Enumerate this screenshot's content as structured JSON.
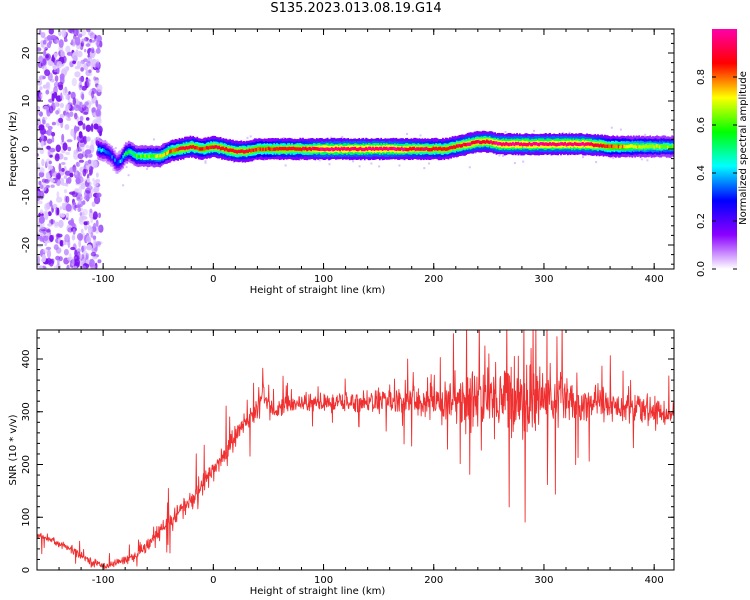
{
  "figure_title": "S135.2023.013.08.19.G14",
  "chart_data": [
    {
      "type": "heatmap",
      "title": "S135.2023.013.08.19.G14",
      "xlabel": "Height of straight line (km)",
      "ylabel": "Frequency (Hz)",
      "xlim": [
        -160,
        418
      ],
      "ylim": [
        -25,
        25
      ],
      "x_ticks": [
        -100,
        0,
        100,
        200,
        300,
        400
      ],
      "y_ticks": [
        -20,
        -10,
        0,
        10,
        20
      ],
      "colorbar": {
        "label": "Normalized spectral amplitude",
        "range": [
          0,
          1
        ],
        "ticks": [
          "0.0",
          "0.2",
          "0.4",
          "0.6",
          "0.8"
        ],
        "tick_values": [
          0,
          0.2,
          0.4,
          0.6,
          0.8
        ],
        "colormap": [
          "#ffffff",
          "#8a00ff",
          "#0000ff",
          "#00ffff",
          "#00ff00",
          "#ffff00",
          "#ff0000",
          "#ff00aa"
        ]
      },
      "noise_region_x": [
        -160,
        -102
      ],
      "ridge": {
        "x": [
          -105,
          -98,
          -92,
          -88,
          -84,
          -80,
          -76,
          -70,
          -62,
          -55,
          -48,
          -40,
          -30,
          -20,
          -10,
          0,
          10,
          20,
          30,
          40,
          50,
          60,
          80,
          100,
          120,
          140,
          160,
          180,
          200,
          210,
          220,
          230,
          240,
          250,
          260,
          280,
          300,
          320,
          340,
          360,
          380,
          400,
          418
        ],
        "freq_hz": [
          0,
          -0.5,
          -1.5,
          -3,
          -2.5,
          -1,
          -0.5,
          -1.5,
          -1.5,
          -1.5,
          -1.5,
          -0.5,
          0,
          0.5,
          0,
          0.5,
          0,
          -0.5,
          -0.5,
          0,
          0,
          0,
          0,
          0,
          0,
          0,
          0,
          0,
          0,
          0,
          0.5,
          1,
          1.5,
          1.5,
          1,
          1,
          1,
          1,
          1,
          0.5,
          0.5,
          0.5,
          0.5
        ],
        "peak_amplitude": [
          0.4,
          0.35,
          0.3,
          0.3,
          0.35,
          0.45,
          0.5,
          0.55,
          0.6,
          0.6,
          0.65,
          0.75,
          0.85,
          0.85,
          0.8,
          0.85,
          0.85,
          0.85,
          0.85,
          0.8,
          0.8,
          0.85,
          0.85,
          0.95,
          0.95,
          0.95,
          0.95,
          0.9,
          0.85,
          0.85,
          0.85,
          0.9,
          0.9,
          0.9,
          0.95,
          0.95,
          0.95,
          0.95,
          0.95,
          0.8,
          0.7,
          0.65,
          0.6
        ]
      }
    },
    {
      "type": "line",
      "xlabel": "Height of straight line (km)",
      "ylabel": "SNR (10 * v/v)",
      "xlim": [
        -160,
        418
      ],
      "ylim": [
        0,
        455
      ],
      "x_ticks": [
        -100,
        0,
        100,
        200,
        300,
        400
      ],
      "y_ticks": [
        0,
        100,
        200,
        300,
        400
      ],
      "color": "#f03030",
      "series": [
        {
          "x": [
            -160,
            -150,
            -140,
            -130,
            -120,
            -110,
            -100,
            -90,
            -80,
            -70,
            -60,
            -50,
            -40,
            -30,
            -20,
            -10,
            0,
            10,
            20,
            30,
            40,
            45,
            50,
            55,
            60,
            70,
            80,
            100,
            120,
            140,
            160,
            180,
            200,
            220,
            240,
            260,
            280,
            300,
            320,
            340,
            360,
            380,
            400,
            418
          ],
          "y": [
            65,
            60,
            50,
            40,
            28,
            15,
            8,
            12,
            20,
            25,
            45,
            70,
            90,
            115,
            130,
            160,
            190,
            220,
            255,
            280,
            305,
            335,
            320,
            300,
            310,
            315,
            318,
            315,
            318,
            320,
            320,
            318,
            320,
            322,
            325,
            330,
            325,
            325,
            325,
            320,
            315,
            305,
            300,
            295
          ],
          "noise_amplitude": [
            10,
            10,
            10,
            10,
            8,
            8,
            8,
            8,
            8,
            10,
            15,
            18,
            20,
            22,
            22,
            25,
            25,
            25,
            25,
            25,
            25,
            25,
            30,
            20,
            18,
            18,
            20,
            20,
            22,
            25,
            28,
            35,
            45,
            60,
            75,
            85,
            85,
            70,
            55,
            45,
            35,
            30,
            28,
            25
          ]
        }
      ]
    }
  ]
}
